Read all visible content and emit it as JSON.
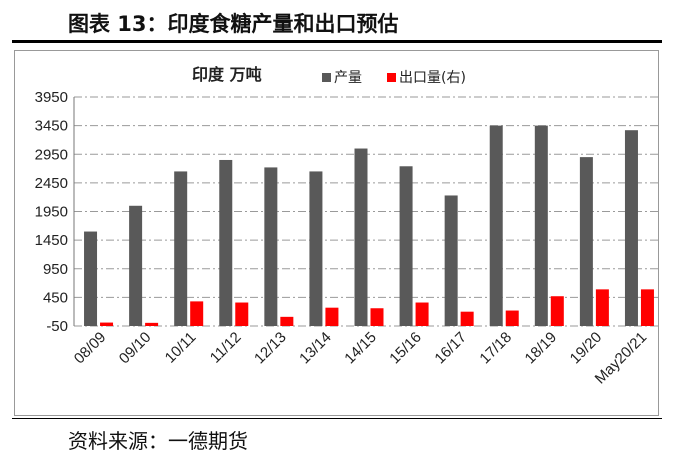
{
  "figure_title": "图表 13：印度食糖产量和出口预估",
  "source": "资料来源：一德期货",
  "chart_data": {
    "type": "bar",
    "title": "印度 万吨",
    "categories": [
      "08/09",
      "09/10",
      "10/11",
      "11/12",
      "12/13",
      "13/14",
      "14/15",
      "15/16",
      "16/17",
      "17/18",
      "18/19",
      "19/20",
      "May20/21"
    ],
    "series": [
      {
        "name": "产量",
        "color": "#595959",
        "values": [
          1600,
          2050,
          2650,
          2850,
          2720,
          2650,
          3050,
          2740,
          2230,
          3450,
          3450,
          2900,
          3370
        ]
      },
      {
        "name": "出口量(右)",
        "color": "#ff0000",
        "values": [
          10,
          5,
          380,
          360,
          110,
          270,
          260,
          360,
          200,
          220,
          470,
          590,
          590
        ]
      }
    ],
    "yticks": [
      -50,
      450,
      950,
      1450,
      1950,
      2450,
      2950,
      3450,
      3950
    ],
    "ylim": [
      -50,
      3950
    ],
    "grid": true,
    "legend": "top"
  }
}
